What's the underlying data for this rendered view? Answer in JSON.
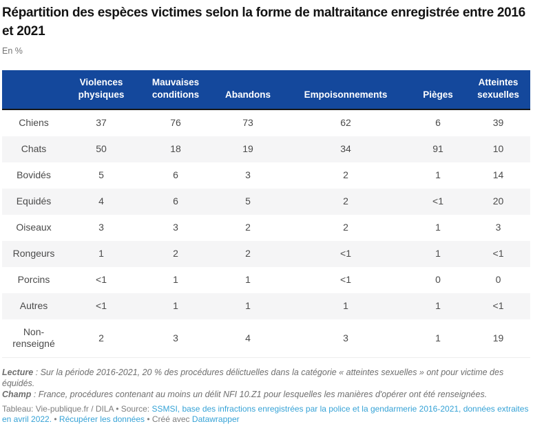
{
  "page": {
    "title": "Répartition des espèces victimes selon la forme de maltraitance enregistrée entre 2016 et 2021",
    "unit_label": "En %"
  },
  "chart_data": {
    "type": "table",
    "title": "Répartition des espèces victimes selon la forme de maltraitance enregistrée entre 2016 et 2021",
    "unit": "En %",
    "columns": [
      "Violences physiques",
      "Mauvaises conditions",
      "Abandons",
      "Empoisonnements",
      "Pièges",
      "Atteintes sexuelles"
    ],
    "rows": [
      {
        "label": "Chiens",
        "values": [
          "37",
          "76",
          "73",
          "62",
          "6",
          "39"
        ]
      },
      {
        "label": "Chats",
        "values": [
          "50",
          "18",
          "19",
          "34",
          "91",
          "10"
        ]
      },
      {
        "label": "Bovidés",
        "values": [
          "5",
          "6",
          "3",
          "2",
          "1",
          "14"
        ]
      },
      {
        "label": "Equidés",
        "values": [
          "4",
          "6",
          "5",
          "2",
          "<1",
          "20"
        ]
      },
      {
        "label": "Oiseaux",
        "values": [
          "3",
          "3",
          "2",
          "2",
          "1",
          "3"
        ]
      },
      {
        "label": "Rongeurs",
        "values": [
          "1",
          "2",
          "2",
          "<1",
          "1",
          "<1"
        ]
      },
      {
        "label": "Porcins",
        "values": [
          "<1",
          "1",
          "1",
          "<1",
          "0",
          "0"
        ]
      },
      {
        "label": "Autres",
        "values": [
          "<1",
          "1",
          "1",
          "1",
          "1",
          "<1"
        ]
      },
      {
        "label": "Non-renseigné",
        "values": [
          "2",
          "3",
          "4",
          "3",
          "1",
          "19"
        ]
      }
    ]
  },
  "notes": {
    "lecture_label": "Lecture",
    "lecture_text": " : Sur la période 2016-2021, 20 % des procédures délictuelles dans la catégorie « atteintes sexuelles » ont pour victime des équidés.",
    "champ_label": "Champ",
    "champ_text": " : France, procédures contenant au moins un délit NFI 10.Z1 pour lesquelles les manières d'opérer ont été renseignées."
  },
  "attribution": {
    "prefix": "Tableau: Vie-publique.fr / DILA • Source: ",
    "source_link": "SSMSI, base des infractions enregistrées par la police et la gendarmerie 2016-2021, données extraites en avril 2022.",
    "separator1": " • ",
    "data_link": "Récupérer les données",
    "separator2": " • Créé avec ",
    "credit_link": "Datawrapper"
  },
  "colors": {
    "header_bg": "#14489c",
    "header_text": "#ffffff",
    "header_border": "#161616",
    "row_alt_bg": "#f5f5f6",
    "body_text": "#4a4a4a",
    "link": "#35a2d6"
  }
}
